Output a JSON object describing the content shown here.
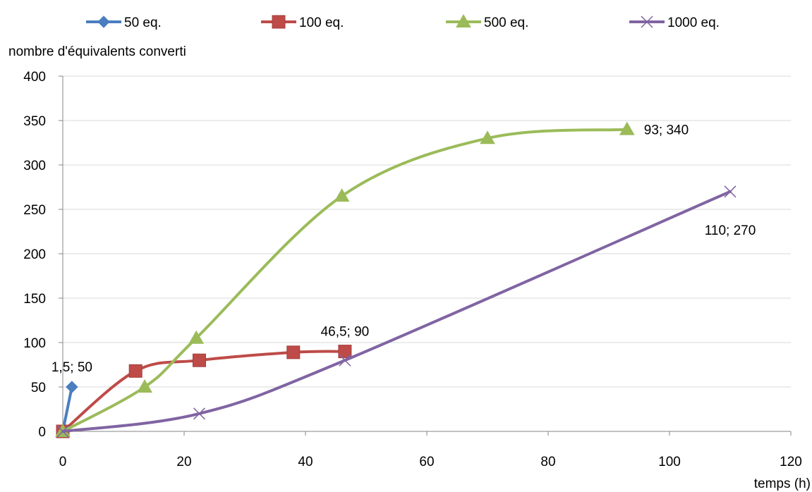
{
  "chart_data": {
    "type": "line",
    "title": "",
    "xlabel": "temps (h)",
    "ylabel": "nombre d'équivalents converti",
    "xlim": [
      0,
      120
    ],
    "ylim": [
      0,
      400
    ],
    "x_ticks": [
      0,
      20,
      40,
      60,
      80,
      100,
      120
    ],
    "y_ticks": [
      0,
      50,
      100,
      150,
      200,
      250,
      300,
      350,
      400
    ],
    "grid": "horizontal",
    "legend_position": "top",
    "series": [
      {
        "name": "50 eq.",
        "color": "#4a7ebf",
        "marker": "diamond",
        "points": [
          [
            0,
            0
          ],
          [
            1.5,
            50
          ]
        ]
      },
      {
        "name": "100 eq.",
        "color": "#be4b48",
        "marker": "square",
        "points": [
          [
            0,
            0
          ],
          [
            12,
            68
          ],
          [
            22.5,
            80
          ],
          [
            38,
            89
          ],
          [
            46.5,
            90
          ]
        ]
      },
      {
        "name": "500 eq.",
        "color": "#9bbb59",
        "marker": "triangle",
        "points": [
          [
            0,
            0
          ],
          [
            13.5,
            50
          ],
          [
            22,
            105
          ],
          [
            46,
            265
          ],
          [
            70,
            330
          ],
          [
            93,
            340
          ]
        ]
      },
      {
        "name": "1000 eq.",
        "color": "#8064a2",
        "marker": "x",
        "points": [
          [
            0,
            0
          ],
          [
            22.5,
            20
          ],
          [
            46.5,
            80
          ],
          [
            110,
            270
          ]
        ]
      }
    ],
    "annotations": [
      {
        "text": "1,5; 50",
        "x": 1.5,
        "y": 50,
        "anchor": "above"
      },
      {
        "text": "46,5; 90",
        "x": 46.5,
        "y": 90,
        "anchor": "above"
      },
      {
        "text": "93; 340",
        "x": 93,
        "y": 340,
        "anchor": "right"
      },
      {
        "text": "110; 270",
        "x": 110,
        "y": 270,
        "anchor": "below"
      }
    ]
  }
}
